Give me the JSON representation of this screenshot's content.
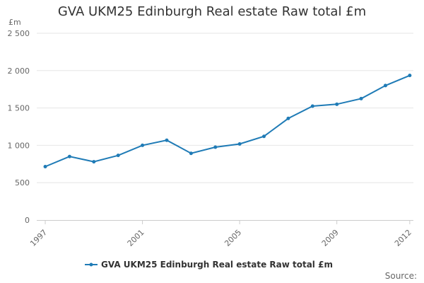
{
  "chart_data": {
    "type": "line",
    "title": "GVA UKM25 Edinburgh Real estate Raw total £m",
    "unit_label": "£m",
    "x": [
      1997,
      1998,
      1999,
      2000,
      2001,
      2002,
      2003,
      2004,
      2005,
      2006,
      2007,
      2008,
      2009,
      2010,
      2011,
      2012
    ],
    "x_tick_labels": [
      "1997",
      "2001",
      "2005",
      "2009",
      "2012"
    ],
    "x_tick_values": [
      1997,
      2001,
      2005,
      2009,
      2012
    ],
    "y_tick_labels": [
      "0",
      "500",
      "1 000",
      "1 500",
      "2 000",
      "2 500"
    ],
    "y_tick_values": [
      0,
      500,
      1000,
      1500,
      2000,
      2500
    ],
    "ylim": [
      0,
      2500
    ],
    "grid": true,
    "legend_position": "bottom-center",
    "series": [
      {
        "name": "GVA UKM25 Edinburgh Real estate Raw total £m",
        "color": "#1f7bb6",
        "values": [
          715,
          850,
          780,
          865,
          1000,
          1068,
          893,
          975,
          1018,
          1120,
          1360,
          1525,
          1550,
          1625,
          1800,
          1935
        ]
      }
    ],
    "source": "Source:"
  }
}
